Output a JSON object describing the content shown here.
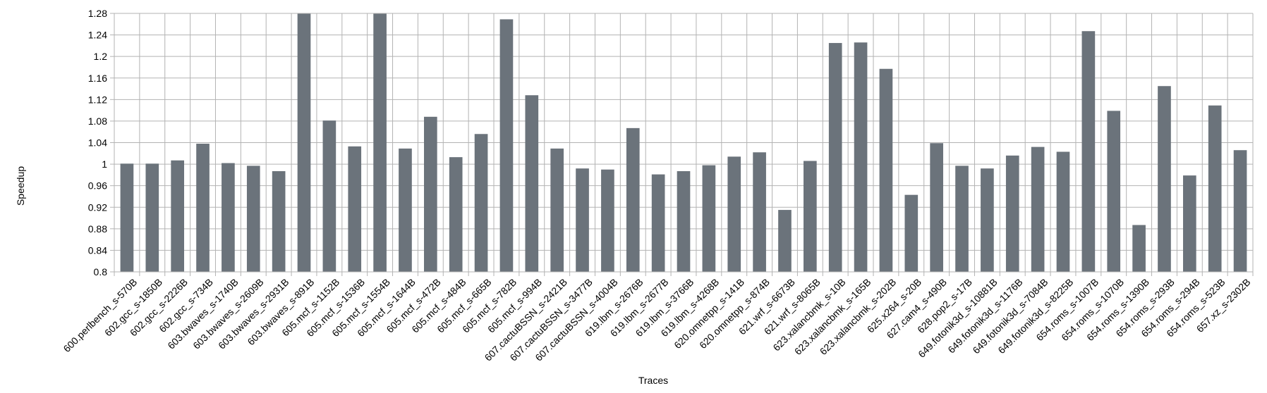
{
  "chart_data": {
    "type": "bar",
    "title": "",
    "xlabel": "Traces",
    "ylabel": "Speedup",
    "ylim": [
      0.8,
      1.28
    ],
    "yticks": [
      "0.8",
      "0.84",
      "0.88",
      "0.92",
      "0.96",
      "1",
      "1.04",
      "1.08",
      "1.12",
      "1.16",
      "1.2",
      "1.24",
      "1.28"
    ],
    "grid": true,
    "legend": "none",
    "bar_color": "#6b737b",
    "categories": [
      "600.perlbench_s-570B",
      "602.gcc_s-1850B",
      "602.gcc_s-2226B",
      "602.gcc_s-734B",
      "603.bwaves_s-1740B",
      "603.bwaves_s-2609B",
      "603.bwaves_s-2931B",
      "603.bwaves_s-891B",
      "605.mcf_s-1152B",
      "605.mcf_s-1536B",
      "605.mcf_s-1554B",
      "605.mcf_s-1644B",
      "605.mcf_s-472B",
      "605.mcf_s-484B",
      "605.mcf_s-665B",
      "605.mcf_s-782B",
      "605.mcf_s-994B",
      "607.cactuBSSN_s-2421B",
      "607.cactuBSSN_s-3477B",
      "607.cactuBSSN_s-4004B",
      "619.lbm_s-2676B",
      "619.lbm_s-2677B",
      "619.lbm_s-3766B",
      "619.lbm_s-4268B",
      "620.omnetpp_s-141B",
      "620.omnetpp_s-874B",
      "621.wrf_s-6673B",
      "621.wrf_s-8065B",
      "623.xalancbmk_s-10B",
      "623.xalancbmk_s-165B",
      "623.xalancbmk_s-202B",
      "625.x264_s-20B",
      "627.cam4_s-490B",
      "628.pop2_s-17B",
      "649.fotonik3d_s-10881B",
      "649.fotonik3d_s-1176B",
      "649.fotonik3d_s-7084B",
      "649.fotonik3d_s-8225B",
      "654.roms_s-1007B",
      "654.roms_s-1070B",
      "654.roms_s-1390B",
      "654.roms_s-293B",
      "654.roms_s-294B",
      "654.roms_s-523B",
      "657.xz_s-2302B"
    ],
    "values": [
      1.001,
      1.001,
      1.007,
      1.038,
      1.002,
      0.997,
      0.987,
      1.28,
      1.081,
      1.033,
      1.28,
      1.029,
      1.088,
      1.013,
      1.056,
      1.269,
      1.128,
      1.029,
      0.992,
      0.99,
      1.067,
      0.981,
      0.987,
      0.998,
      1.014,
      1.022,
      0.915,
      1.006,
      1.225,
      1.226,
      1.177,
      0.943,
      1.039,
      0.997,
      0.992,
      1.016,
      1.032,
      1.023,
      1.247,
      1.099,
      0.887,
      1.145,
      0.979,
      1.109,
      1.026
    ]
  }
}
